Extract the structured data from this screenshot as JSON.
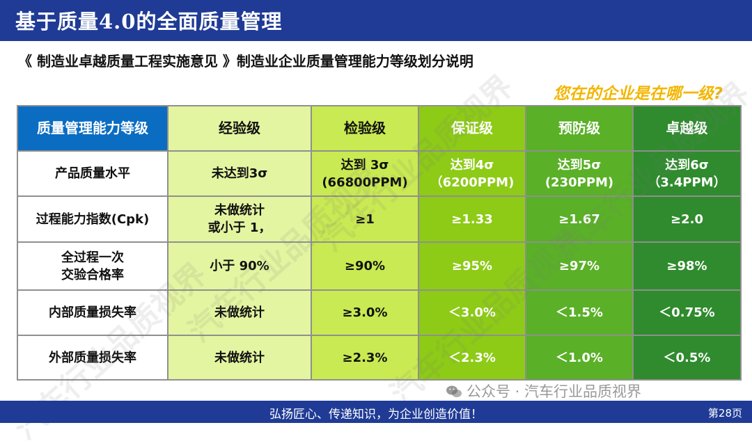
{
  "header": {
    "title": "基于质量4.0的全面质量管理",
    "bar_color": "#1f3b95"
  },
  "subtitle": "《 制造业卓越质量工程实施意见 》制造业企业质量管理能力等级划分说明",
  "question": "您在的企业是在哪一级?",
  "table": {
    "columns": [
      "质量管理能力等级",
      "经验级",
      "检验级",
      "保证级",
      "预防级",
      "卓越级"
    ],
    "rows": [
      {
        "label": "产品质量水平",
        "cells": [
          [
            "未达到3σ"
          ],
          [
            "达到 3σ",
            "(66800PPM)"
          ],
          [
            "达到4σ",
            "（6200PPM)"
          ],
          [
            "达到5σ",
            "(230PPM)"
          ],
          [
            "达到6σ",
            "（3.4PPM）"
          ]
        ]
      },
      {
        "label": "过程能力指数(Cpk)",
        "cells": [
          [
            "未做统计",
            "或小于 1，"
          ],
          [
            "≥1"
          ],
          [
            "≥1.33"
          ],
          [
            "≥1.67"
          ],
          [
            "≥2.0"
          ]
        ]
      },
      {
        "label_lines": [
          "全过程一次",
          "交验合格率"
        ],
        "cells": [
          [
            "小于 90%"
          ],
          [
            "≥90%"
          ],
          [
            "≥95%"
          ],
          [
            "≥97%"
          ],
          [
            "≥98%"
          ]
        ]
      },
      {
        "label": "内部质量损失率",
        "cells": [
          [
            "未做统计"
          ],
          [
            "≥3.0%"
          ],
          [
            "＜3.0%"
          ],
          [
            "＜1.5%"
          ],
          [
            "＜0.75%"
          ]
        ]
      },
      {
        "label": "外部质量损失率",
        "cells": [
          [
            "未做统计"
          ],
          [
            "≥2.3%"
          ],
          [
            "＜2.3%"
          ],
          [
            "＜1.0%"
          ],
          [
            "＜0.5%"
          ]
        ]
      }
    ],
    "level_colors": [
      "#e3f5a0",
      "#c9ea52",
      "#8dcb16",
      "#5ab027",
      "#2f8b2d"
    ],
    "header_color": "#0b6dc2"
  },
  "watermark": {
    "text": "汽车行业品质视界",
    "icon": "wechat-icon",
    "label": "公众号 · 汽车行业品质视界"
  },
  "footer": {
    "slogan": "弘扬匠心、传递知识，为企业创造价值！",
    "page": "第28页"
  },
  "colors": {
    "question": "#f2b600"
  }
}
